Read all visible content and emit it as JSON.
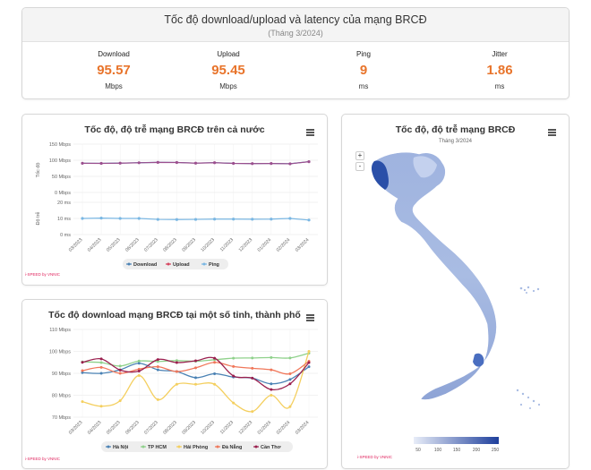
{
  "summary": {
    "title": "Tốc độ download/upload và latency của mạng BRCĐ",
    "subtitle": "(Tháng 3/2024)",
    "metrics": [
      {
        "label": "Download",
        "value": "95.57",
        "unit": "Mbps"
      },
      {
        "label": "Upload",
        "value": "95.45",
        "unit": "Mbps"
      },
      {
        "label": "Ping",
        "value": "9",
        "unit": "ms"
      },
      {
        "label": "Jitter",
        "value": "1.86",
        "unit": "ms"
      }
    ]
  },
  "map": {
    "title": "Tốc độ, độ trễ mạng BRCĐ",
    "subtitle": "Tháng 3/2024",
    "zoom_in": "+",
    "zoom_out": "-",
    "credit": "i-SPEED by VNNIC",
    "legend_ticks": [
      "50",
      "100",
      "150",
      "200",
      "250"
    ]
  },
  "colors": {
    "accent": "#e8742b",
    "download": "#4a82b4",
    "upload": "#d6455f",
    "ping": "#7ab7e3",
    "combined_line": "#9b4f8e",
    "hanoi": "#4a82b4",
    "tphcm": "#8fd18b",
    "haiphong": "#f4cf5f",
    "danang": "#f0775a",
    "cantho": "#9a1f4e"
  },
  "chart_data": [
    {
      "type": "line",
      "title": "Tốc độ, độ trễ mạng BRCĐ trên cả nước",
      "credit": "i-SPEED by VNNIC",
      "categories": [
        "03/2023",
        "04/2023",
        "05/2023",
        "06/2023",
        "07/2023",
        "08/2023",
        "09/2023",
        "10/2023",
        "11/2023",
        "12/2023",
        "01/2024",
        "02/2024",
        "03/2024"
      ],
      "speed_axis": {
        "label": "Tốc độ",
        "ticks": [
          "150 Mbps",
          "100 Mbps",
          "50 Mbps",
          "0 Mbps"
        ],
        "range": [
          0,
          150
        ]
      },
      "latency_axis": {
        "label": "Độ trễ",
        "ticks": [
          "20 ms",
          "10 ms",
          "0 ms"
        ],
        "range": [
          0,
          20
        ]
      },
      "series": [
        {
          "name": "Download",
          "axis": "speed",
          "values": [
            90.8,
            90.5,
            91.2,
            92.4,
            93.5,
            93.2,
            91.2,
            92.6,
            90.5,
            89.8,
            90.1,
            89.2,
            95.6
          ]
        },
        {
          "name": "Upload",
          "axis": "speed",
          "values": [
            90.6,
            90.3,
            91.0,
            92.2,
            93.3,
            93.0,
            91.0,
            92.4,
            90.3,
            89.6,
            89.9,
            89.0,
            95.5
          ]
        },
        {
          "name": "Ping",
          "axis": "latency",
          "values": [
            10.0,
            10.2,
            10.0,
            10.0,
            9.4,
            9.3,
            9.4,
            9.6,
            9.6,
            9.5,
            9.6,
            10.0,
            9.0
          ]
        }
      ],
      "legend_position": "bottom"
    },
    {
      "type": "line",
      "title": "Tốc độ download mạng BRCĐ tại một số tỉnh, thành phố",
      "credit": "i-SPEED by VNNIC",
      "categories": [
        "03/2023",
        "04/2023",
        "05/2023",
        "06/2023",
        "07/2023",
        "08/2023",
        "09/2023",
        "10/2023",
        "11/2023",
        "12/2023",
        "01/2024",
        "02/2024",
        "03/2024"
      ],
      "yticks": [
        "110 Mbps",
        "100 Mbps",
        "90 Mbps",
        "80 Mbps",
        "70 Mbps"
      ],
      "ylim": [
        70,
        110
      ],
      "series": [
        {
          "name": "Hà Nội",
          "values": [
            90.3,
            90.0,
            91.6,
            94.6,
            91.6,
            90.8,
            88.0,
            89.8,
            88.3,
            87.8,
            85.2,
            87.2,
            93.0
          ]
        },
        {
          "name": "TP HCM",
          "values": [
            95.2,
            94.9,
            93.3,
            95.6,
            95.4,
            95.8,
            95.5,
            96.2,
            96.9,
            97.0,
            97.2,
            97.0,
            99.2
          ]
        },
        {
          "name": "Hải Phòng",
          "values": [
            77.1,
            75.0,
            77.5,
            89.0,
            78.0,
            85.0,
            85.0,
            85.0,
            76.5,
            72.6,
            80.0,
            74.8,
            100.0
          ]
        },
        {
          "name": "Đà Nẵng",
          "values": [
            91.2,
            92.7,
            90.0,
            91.9,
            93.0,
            90.8,
            92.5,
            95.0,
            93.1,
            92.3,
            91.6,
            89.8,
            95.5
          ]
        },
        {
          "name": "Cần Thơ",
          "values": [
            95.0,
            96.6,
            91.5,
            91.0,
            96.3,
            94.9,
            95.7,
            96.9,
            88.8,
            87.8,
            82.6,
            85.2,
            94.9
          ]
        }
      ],
      "legend_position": "bottom"
    }
  ]
}
